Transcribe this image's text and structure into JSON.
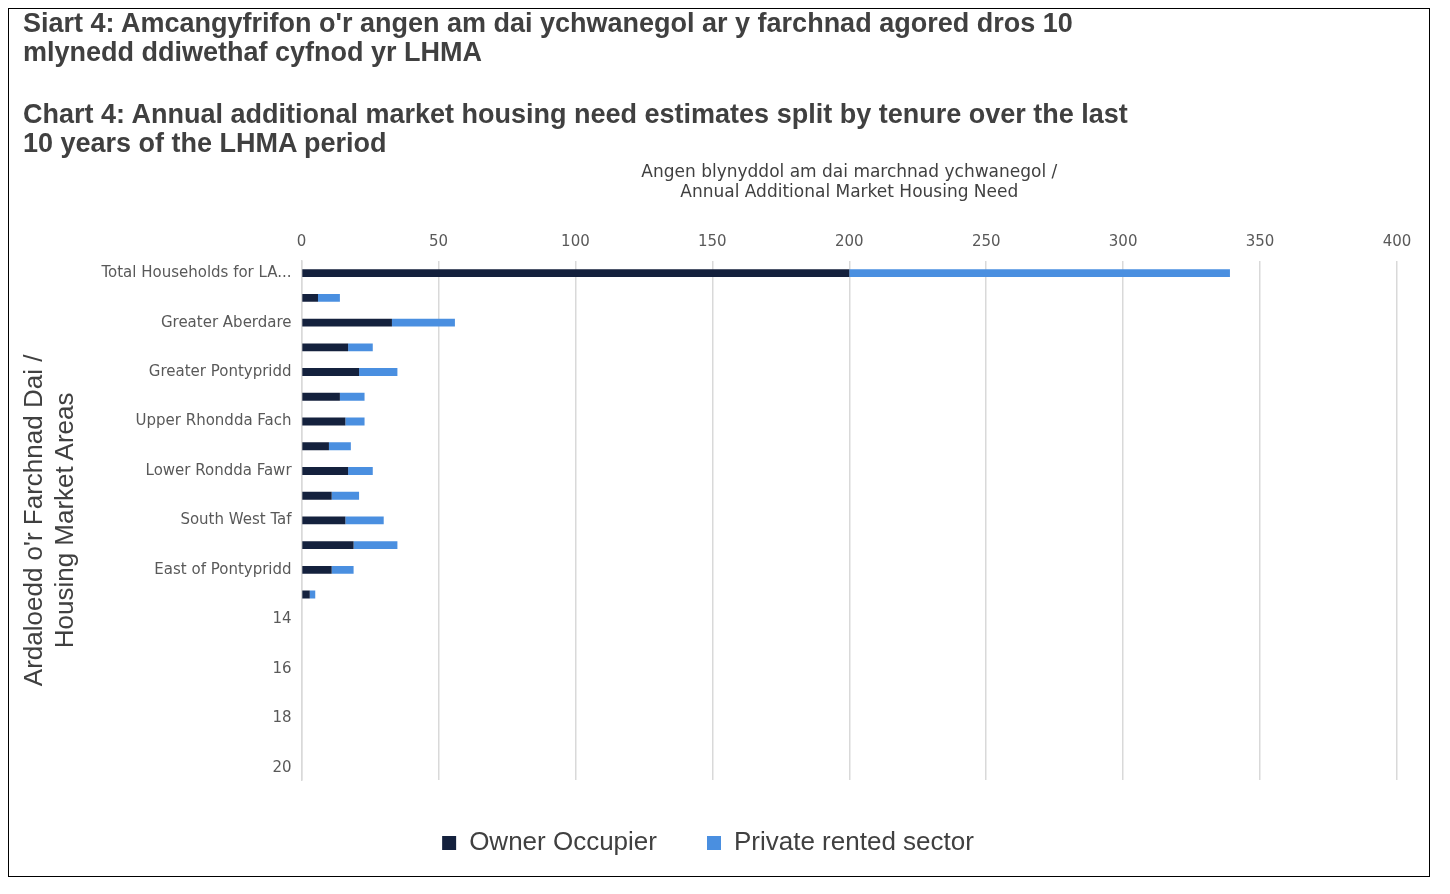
{
  "chart_data": {
    "type": "bar",
    "orientation": "horizontal",
    "stacked": true,
    "title": "Siart 4: Amcangyfrifon o'r angen am dai ychwanegol ar y farchnad agored dros 10 mlynedd ddiwethaf cyfnod yr LHMA",
    "subtitle": "Chart 4: Annual additional market housing need estimates split by tenure over the last 10 years of the LHMA period",
    "xlabel": "Angen blynyddol am dai marchnad ychwanegol /\nAnnual Additional Market Housing Need",
    "ylabel": "Ardaloedd o'r Farchnad Dai /\nHousing Market Areas",
    "categories": [
      "Total Households for LA...",
      null,
      "Greater Aberdare",
      null,
      "Greater Pontypridd",
      null,
      "Upper Rhondda Fach",
      null,
      "Lower Rondda Fawr",
      null,
      "South West Taf",
      null,
      "East of Pontypridd",
      null,
      "14",
      null,
      "16",
      null,
      "18",
      null,
      "20"
    ],
    "series": [
      {
        "name": "Owner Occupier",
        "color": "#14213d",
        "values": [
          200,
          6,
          33,
          17,
          21,
          14,
          16,
          10,
          17,
          11,
          16,
          19,
          11,
          3,
          null,
          null,
          null,
          null,
          null,
          null,
          null
        ]
      },
      {
        "name": "Private rented sector",
        "color": "#4a8fe0",
        "values": [
          139,
          8,
          23,
          9,
          14,
          9,
          7,
          8,
          9,
          10,
          14,
          16,
          8,
          2,
          null,
          null,
          null,
          null,
          null,
          null,
          null
        ]
      }
    ],
    "xlim": [
      0,
      400
    ],
    "xticks": [
      0,
      50,
      100,
      150,
      200,
      250,
      300,
      350,
      400
    ],
    "grid": "x",
    "legend": "bottom"
  }
}
